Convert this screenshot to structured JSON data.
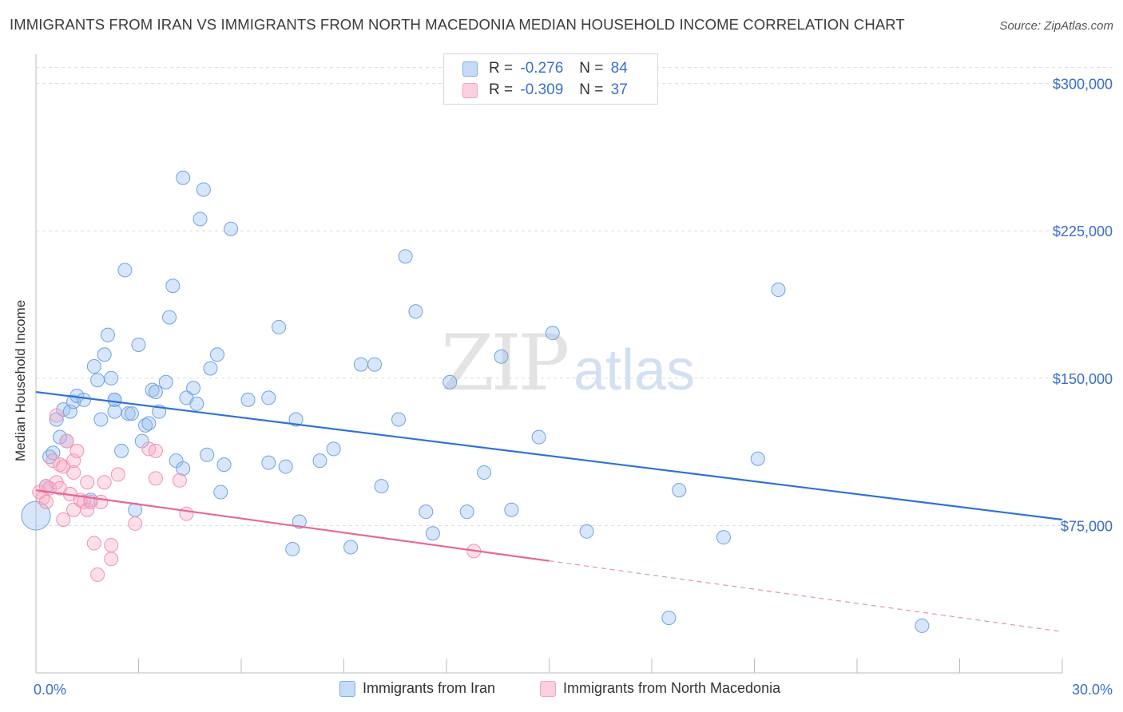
{
  "title": "IMMIGRANTS FROM IRAN VS IMMIGRANTS FROM NORTH MACEDONIA MEDIAN HOUSEHOLD INCOME CORRELATION CHART",
  "source": "Source: ZipAtlas.com",
  "watermark": {
    "zip": "ZIP",
    "atlas": "atlas"
  },
  "stats": [
    {
      "r_label": "R =",
      "r_value": "-0.276",
      "n_label": "N =",
      "n_value": "84",
      "color": "#7aaee8"
    },
    {
      "r_label": "R =",
      "r_value": "-0.309",
      "n_label": "N =",
      "n_value": "37",
      "color": "#f4a3bd"
    }
  ],
  "chart_data": {
    "type": "scatter",
    "title": "IMMIGRANTS FROM IRAN VS IMMIGRANTS FROM NORTH MACEDONIA MEDIAN HOUSEHOLD INCOME CORRELATION CHART",
    "xlabel": "",
    "ylabel": "Median Household Income",
    "xlim": [
      0,
      30
    ],
    "ylim": [
      0,
      310000
    ],
    "x_tick_labels": [
      "0.0%",
      "30.0%"
    ],
    "y_ticks": [
      75000,
      150000,
      225000,
      300000
    ],
    "y_tick_labels": [
      "$75,000",
      "$150,000",
      "$225,000",
      "$300,000"
    ],
    "grid": true,
    "legend_position": "bottom",
    "series": [
      {
        "name": "Immigrants from Iran",
        "color": "#7aaee8",
        "trend": {
          "x": [
            0,
            30
          ],
          "y": [
            143000,
            78000
          ]
        },
        "points": [
          {
            "x": 0.0,
            "y": 80000,
            "big": true
          },
          {
            "x": 0.3,
            "y": 95000
          },
          {
            "x": 0.4,
            "y": 110000
          },
          {
            "x": 0.5,
            "y": 112000
          },
          {
            "x": 0.6,
            "y": 129000
          },
          {
            "x": 0.7,
            "y": 120000
          },
          {
            "x": 0.8,
            "y": 134000
          },
          {
            "x": 0.9,
            "y": 118000
          },
          {
            "x": 1.0,
            "y": 133000
          },
          {
            "x": 1.1,
            "y": 138000
          },
          {
            "x": 1.2,
            "y": 141000
          },
          {
            "x": 1.4,
            "y": 139000
          },
          {
            "x": 1.6,
            "y": 88000
          },
          {
            "x": 1.7,
            "y": 156000
          },
          {
            "x": 1.8,
            "y": 149000
          },
          {
            "x": 1.9,
            "y": 129000
          },
          {
            "x": 2.0,
            "y": 162000
          },
          {
            "x": 2.1,
            "y": 172000
          },
          {
            "x": 2.2,
            "y": 150000
          },
          {
            "x": 2.3,
            "y": 139000
          },
          {
            "x": 2.3,
            "y": 139000
          },
          {
            "x": 2.3,
            "y": 133000
          },
          {
            "x": 2.5,
            "y": 113000
          },
          {
            "x": 2.6,
            "y": 205000
          },
          {
            "x": 2.7,
            "y": 132000
          },
          {
            "x": 2.8,
            "y": 132000
          },
          {
            "x": 2.9,
            "y": 83000
          },
          {
            "x": 3.0,
            "y": 167000
          },
          {
            "x": 3.1,
            "y": 118000
          },
          {
            "x": 3.2,
            "y": 126000
          },
          {
            "x": 3.3,
            "y": 127000
          },
          {
            "x": 3.4,
            "y": 144000
          },
          {
            "x": 3.5,
            "y": 143000
          },
          {
            "x": 3.6,
            "y": 133000
          },
          {
            "x": 3.8,
            "y": 148000
          },
          {
            "x": 3.9,
            "y": 181000
          },
          {
            "x": 4.0,
            "y": 197000
          },
          {
            "x": 4.1,
            "y": 108000
          },
          {
            "x": 4.3,
            "y": 104000
          },
          {
            "x": 4.3,
            "y": 252000
          },
          {
            "x": 4.4,
            "y": 140000
          },
          {
            "x": 4.6,
            "y": 145000
          },
          {
            "x": 4.7,
            "y": 137000
          },
          {
            "x": 4.8,
            "y": 231000
          },
          {
            "x": 4.9,
            "y": 246000
          },
          {
            "x": 5.0,
            "y": 111000
          },
          {
            "x": 5.1,
            "y": 155000
          },
          {
            "x": 5.3,
            "y": 162000
          },
          {
            "x": 5.4,
            "y": 92000
          },
          {
            "x": 5.5,
            "y": 106000
          },
          {
            "x": 5.7,
            "y": 226000
          },
          {
            "x": 6.2,
            "y": 139000
          },
          {
            "x": 6.8,
            "y": 140000
          },
          {
            "x": 6.8,
            "y": 107000
          },
          {
            "x": 7.1,
            "y": 176000
          },
          {
            "x": 7.3,
            "y": 105000
          },
          {
            "x": 7.5,
            "y": 63000
          },
          {
            "x": 7.6,
            "y": 129000
          },
          {
            "x": 7.7,
            "y": 77000
          },
          {
            "x": 8.3,
            "y": 108000
          },
          {
            "x": 8.7,
            "y": 114000
          },
          {
            "x": 9.2,
            "y": 64000
          },
          {
            "x": 9.5,
            "y": 157000
          },
          {
            "x": 9.9,
            "y": 157000
          },
          {
            "x": 10.1,
            "y": 95000
          },
          {
            "x": 10.6,
            "y": 129000
          },
          {
            "x": 10.8,
            "y": 212000
          },
          {
            "x": 11.1,
            "y": 184000
          },
          {
            "x": 11.4,
            "y": 82000
          },
          {
            "x": 11.6,
            "y": 71000
          },
          {
            "x": 12.1,
            "y": 148000
          },
          {
            "x": 12.6,
            "y": 82000
          },
          {
            "x": 13.1,
            "y": 102000
          },
          {
            "x": 13.6,
            "y": 161000
          },
          {
            "x": 13.9,
            "y": 83000
          },
          {
            "x": 14.7,
            "y": 120000
          },
          {
            "x": 15.1,
            "y": 173000
          },
          {
            "x": 16.1,
            "y": 72000
          },
          {
            "x": 18.5,
            "y": 28000
          },
          {
            "x": 18.8,
            "y": 93000
          },
          {
            "x": 20.1,
            "y": 69000
          },
          {
            "x": 21.1,
            "y": 109000
          },
          {
            "x": 21.7,
            "y": 195000
          },
          {
            "x": 25.9,
            "y": 24000
          }
        ]
      },
      {
        "name": "Immigrants from North Macedonia",
        "color": "#f4a3bd",
        "trend": {
          "x": [
            0,
            15
          ],
          "y": [
            93000,
            57000
          ],
          "dashed_to": {
            "x": 30,
            "y": 21000
          }
        },
        "points": [
          {
            "x": 0.1,
            "y": 92000
          },
          {
            "x": 0.2,
            "y": 89000
          },
          {
            "x": 0.3,
            "y": 95000
          },
          {
            "x": 0.3,
            "y": 87000
          },
          {
            "x": 0.4,
            "y": 94000
          },
          {
            "x": 0.5,
            "y": 108000
          },
          {
            "x": 0.6,
            "y": 131000
          },
          {
            "x": 0.6,
            "y": 97000
          },
          {
            "x": 0.7,
            "y": 106000
          },
          {
            "x": 0.7,
            "y": 94000
          },
          {
            "x": 0.8,
            "y": 78000
          },
          {
            "x": 0.8,
            "y": 105000
          },
          {
            "x": 0.9,
            "y": 118000
          },
          {
            "x": 1.0,
            "y": 91000
          },
          {
            "x": 1.1,
            "y": 102000
          },
          {
            "x": 1.1,
            "y": 108000
          },
          {
            "x": 1.1,
            "y": 83000
          },
          {
            "x": 1.2,
            "y": 113000
          },
          {
            "x": 1.3,
            "y": 88000
          },
          {
            "x": 1.4,
            "y": 87000
          },
          {
            "x": 1.5,
            "y": 83000
          },
          {
            "x": 1.6,
            "y": 87000
          },
          {
            "x": 1.5,
            "y": 97000
          },
          {
            "x": 1.7,
            "y": 66000
          },
          {
            "x": 1.8,
            "y": 50000
          },
          {
            "x": 1.9,
            "y": 87000
          },
          {
            "x": 2.0,
            "y": 97000
          },
          {
            "x": 2.2,
            "y": 58000
          },
          {
            "x": 2.2,
            "y": 65000
          },
          {
            "x": 2.4,
            "y": 101000
          },
          {
            "x": 2.9,
            "y": 76000
          },
          {
            "x": 3.3,
            "y": 114000
          },
          {
            "x": 3.5,
            "y": 113000
          },
          {
            "x": 3.5,
            "y": 99000
          },
          {
            "x": 4.2,
            "y": 98000
          },
          {
            "x": 4.4,
            "y": 81000
          },
          {
            "x": 12.8,
            "y": 62000
          }
        ]
      }
    ]
  }
}
